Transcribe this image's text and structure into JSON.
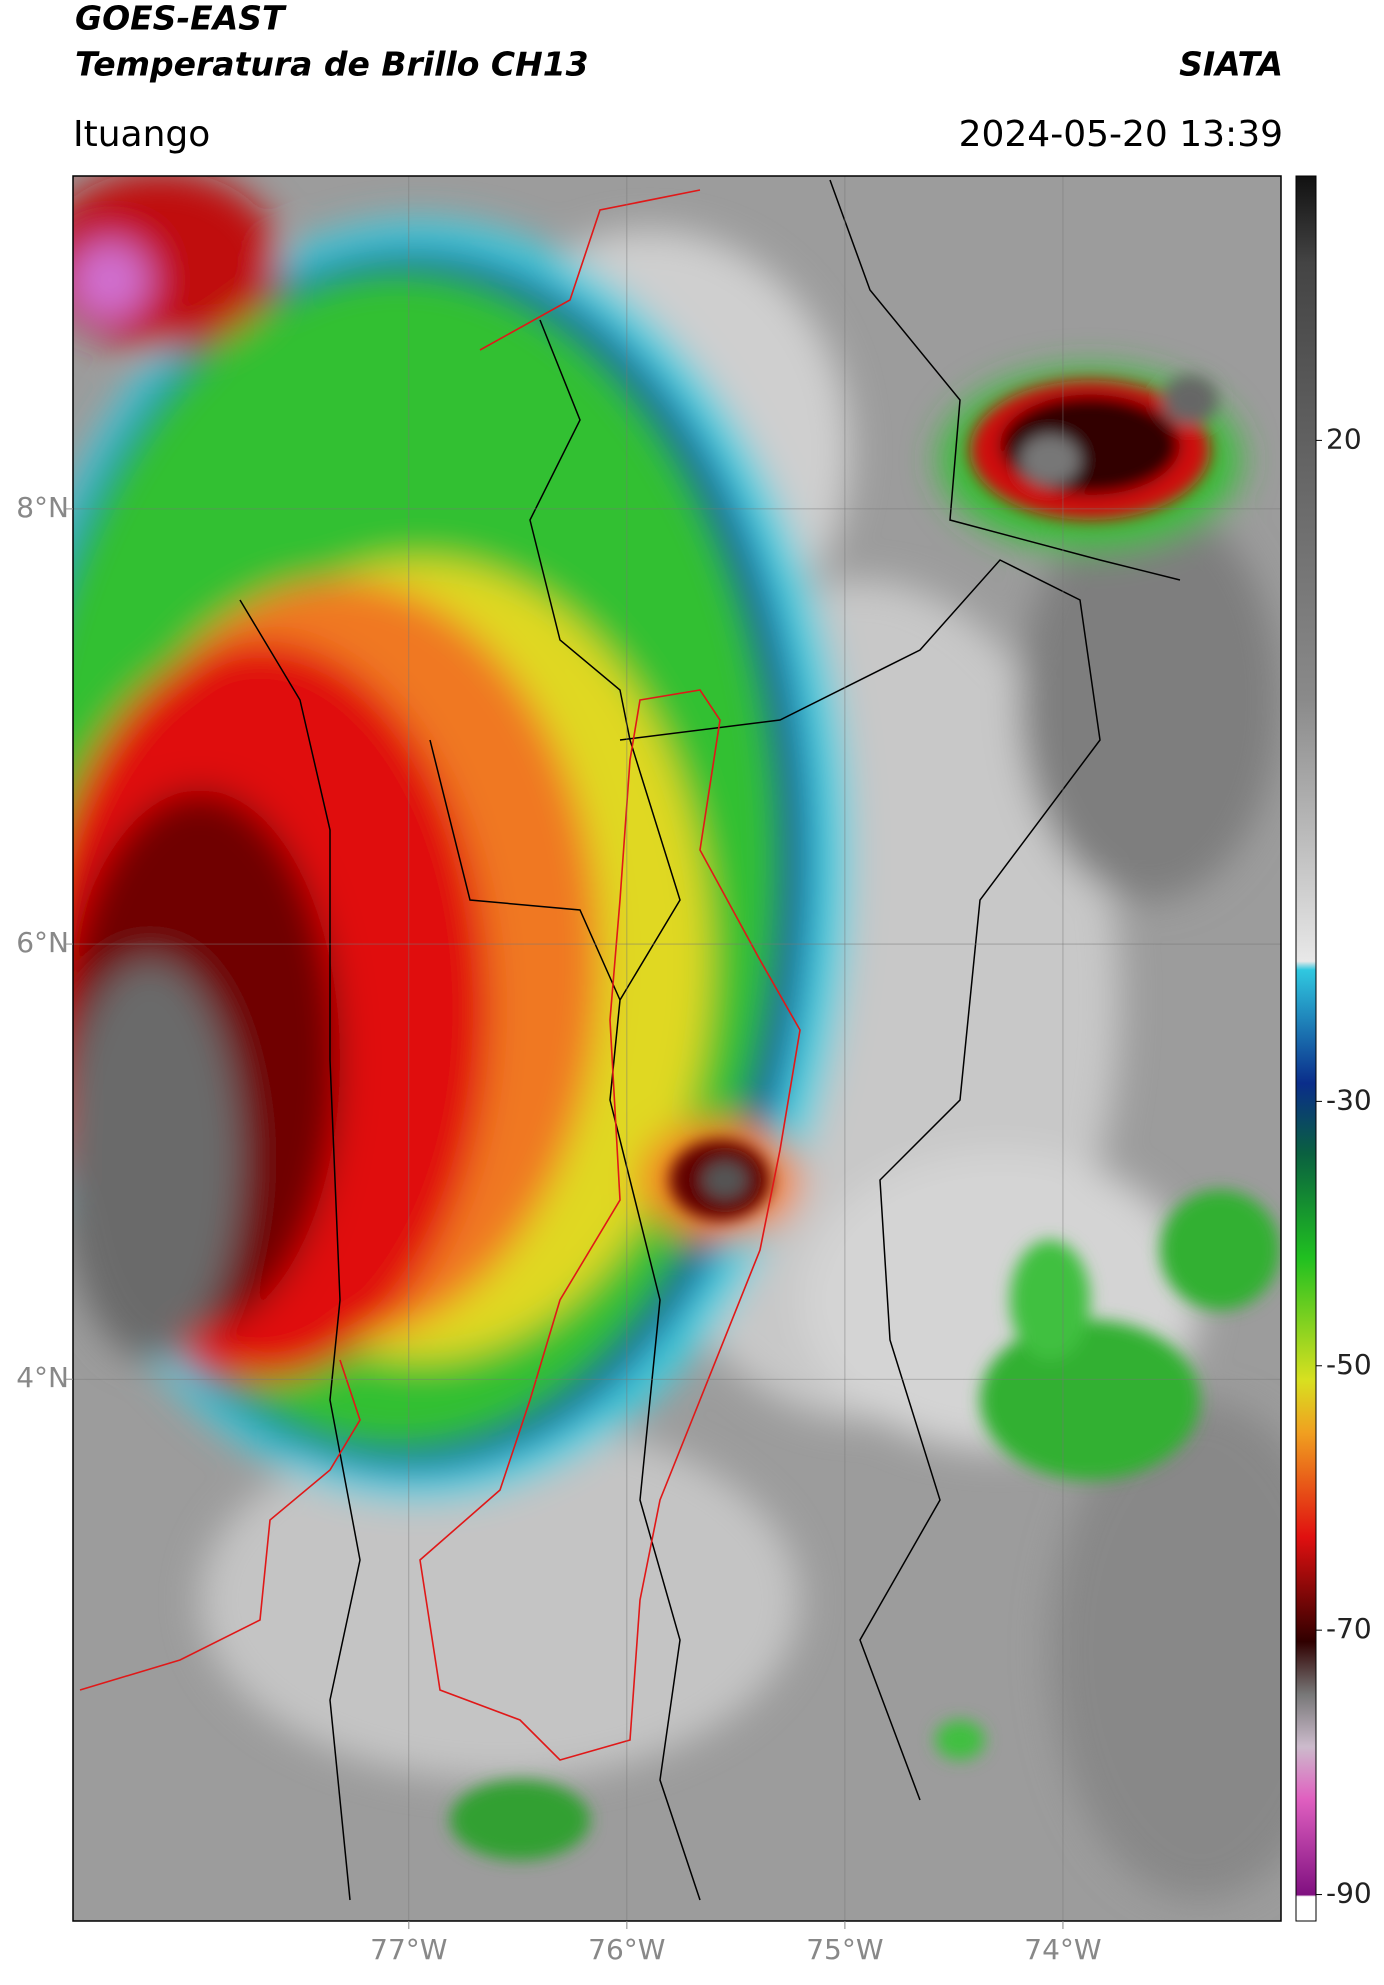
{
  "header": {
    "line1": "GOES-EAST",
    "line2": "Temperatura de Brillo CH13",
    "agency": "SIATA",
    "location": "Ituango",
    "datetime": "2024-05-20 13:39"
  },
  "map": {
    "lonlim": [
      -78.54,
      -73.0
    ],
    "latlim": [
      1.51,
      9.53
    ],
    "lonticks": [
      {
        "value": -77,
        "label": "77°W"
      },
      {
        "value": -76,
        "label": "76°W"
      },
      {
        "value": -75,
        "label": "75°W"
      },
      {
        "value": -74,
        "label": "74°W"
      }
    ],
    "latticks": [
      {
        "value": 8,
        "label": "8°N"
      },
      {
        "value": 6,
        "label": "6°N"
      },
      {
        "value": 4,
        "label": "4°N"
      }
    ],
    "grid": true
  },
  "colorbar": {
    "lim": [
      -92,
      40
    ],
    "ticks": [
      20,
      -30,
      -50,
      -70,
      -90
    ]
  }
}
